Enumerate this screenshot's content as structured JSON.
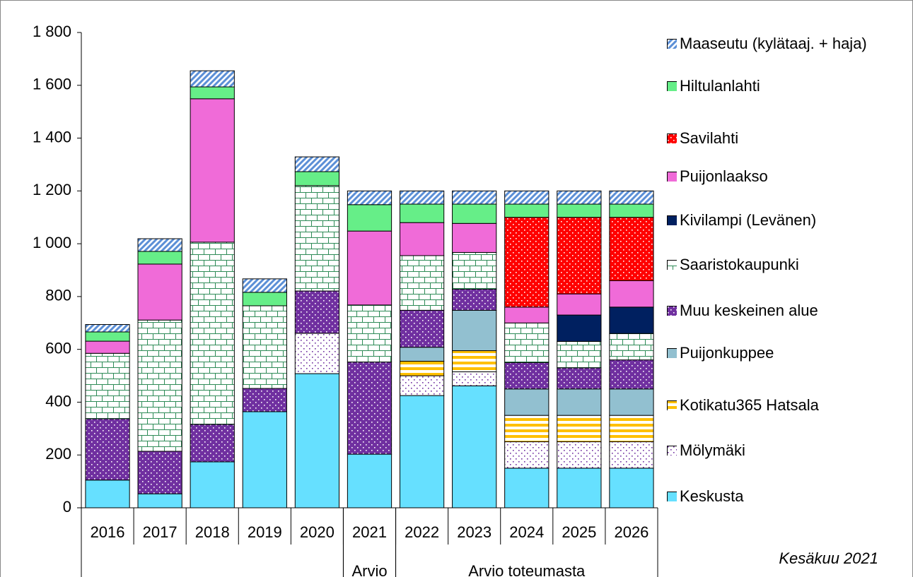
{
  "chart_data": {
    "type": "stacked_bar",
    "categories": [
      "2016",
      "2017",
      "2018",
      "2019",
      "2020",
      "2021",
      "2022",
      "2023",
      "2024",
      "2025",
      "2026"
    ],
    "category_groups": [
      {
        "span": 5
      },
      {
        "label": "Arvio",
        "span": 1
      },
      {
        "label": "Arvio toteumasta",
        "span": 5
      }
    ],
    "annotation": "Kesäkuu 2021",
    "ylim": [
      0,
      1800
    ],
    "yticks": [
      0,
      200,
      400,
      600,
      800,
      {
        "value": 1000,
        "label": "1 000"
      },
      {
        "value": 1200,
        "label": "1 200"
      },
      {
        "value": 1400,
        "label": "1 400"
      },
      {
        "value": 1600,
        "label": "1 600"
      },
      {
        "value": 1800,
        "label": "1 800"
      }
    ],
    "series": [
      {
        "name": "Keskusta",
        "color": "#66e0ff",
        "values": [
          105,
          53,
          174,
          364,
          508,
          203,
          425,
          462,
          150,
          150,
          150
        ]
      },
      {
        "name": "Mölymäki",
        "color": "#ffffff",
        "pattern": {
          "kind": "dots",
          "color": "#7030a0"
        },
        "values": [
          null,
          null,
          null,
          null,
          153,
          null,
          75,
          53,
          100,
          100,
          100
        ]
      },
      {
        "name": "Kotikatu365 Hatsala",
        "color": "#ffffff",
        "pattern": {
          "kind": "hstripes",
          "color": "#ffc000"
        },
        "values": [
          null,
          null,
          null,
          null,
          null,
          null,
          55,
          80,
          100,
          100,
          100
        ]
      },
      {
        "name": "Puijonkuppee",
        "color": "#92c0d0",
        "values": [
          null,
          null,
          null,
          null,
          null,
          null,
          53,
          153,
          100,
          100,
          100
        ]
      },
      {
        "name": "Muu keskeinen alue",
        "color": "#7030a0",
        "pattern": {
          "kind": "dots",
          "color": "#ffffff"
        },
        "values": [
          232,
          161,
          142,
          88,
          160,
          349,
          140,
          80,
          100,
          80,
          110
        ]
      },
      {
        "name": "Saaristokaupunki",
        "color": "#ffffff",
        "pattern": {
          "kind": "bricks",
          "color": "#2e8b57"
        },
        "values": [
          248,
          497,
          690,
          313,
          399,
          216,
          207,
          139,
          150,
          100,
          100
        ]
      },
      {
        "name": "Kivilampi (Levänen)",
        "color": "#002060",
        "values": [
          null,
          null,
          null,
          null,
          null,
          null,
          null,
          null,
          null,
          100,
          100
        ]
      },
      {
        "name": "Puijonlaakso",
        "color": "#f06bd8",
        "values": [
          46,
          212,
          543,
          null,
          null,
          280,
          125,
          110,
          60,
          80,
          100
        ]
      },
      {
        "name": "Savilahti",
        "color": "#ff0000",
        "pattern": {
          "kind": "dots",
          "color": "#ffffff"
        },
        "values": [
          null,
          null,
          null,
          null,
          null,
          null,
          null,
          null,
          340,
          290,
          240
        ]
      },
      {
        "name": "Hiltulanlahti",
        "color": "#66ee88",
        "values": [
          35,
          48,
          45,
          51,
          53,
          100,
          70,
          73,
          50,
          50,
          50
        ]
      },
      {
        "name": "Maaseutu (kylätaaj. + haja)",
        "color": "#ffffff",
        "pattern": {
          "kind": "diagonal",
          "color": "#5b8fd6"
        },
        "values": [
          28,
          48,
          61,
          51,
          56,
          52,
          50,
          50,
          50,
          50,
          50
        ]
      }
    ]
  }
}
